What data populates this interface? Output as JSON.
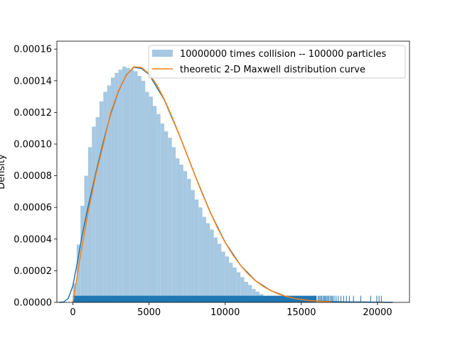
{
  "chart_data": {
    "type": "bar",
    "title": "",
    "xlabel": "",
    "ylabel": "Density",
    "xlim": [
      -1050,
      22100
    ],
    "ylim": [
      0,
      0.000165
    ],
    "xticks": [
      0,
      5000,
      10000,
      15000,
      20000
    ],
    "xtick_labels": [
      "0",
      "5000",
      "10000",
      "15000",
      "20000"
    ],
    "yticks": [
      0,
      2e-05,
      4e-05,
      6e-05,
      8e-05,
      0.0001,
      0.00012,
      0.00014,
      0.00016
    ],
    "ytick_labels": [
      "0.00000",
      "0.00002",
      "0.00004",
      "0.00006",
      "0.00008",
      "0.00010",
      "0.00012",
      "0.00014",
      "0.00016"
    ],
    "grid": false,
    "legend_position": "top-right",
    "colors": {
      "histogram": "#a6c8e2",
      "theory_curve": "#ff7f0e",
      "kde_curve": "#1f77b4",
      "rug": "#1f77b4"
    },
    "series": [
      {
        "name": "10000000 times collision -- 100000 particles",
        "kind": "histogram",
        "bin_edges": [
          0,
          250,
          500,
          750,
          1000,
          1250,
          1500,
          1750,
          2000,
          2250,
          2500,
          2750,
          3000,
          3250,
          3500,
          3750,
          4000,
          4250,
          4500,
          4750,
          5000,
          5250,
          5500,
          5750,
          6000,
          6250,
          6500,
          6750,
          7000,
          7250,
          7500,
          7750,
          8000,
          8250,
          8500,
          8750,
          9000,
          9250,
          9500,
          9750,
          10000,
          10250,
          10500,
          10750,
          11000,
          11250,
          11500,
          11750,
          12000,
          12250,
          12500,
          12750,
          13000,
          13250,
          13500,
          13750,
          14000,
          14250,
          14500,
          14750,
          15000
        ],
        "values": [
          1.2e-05,
          3.65e-05,
          6.1e-05,
          8e-05,
          9.8e-05,
          0.000111,
          0.000117,
          0.000127,
          0.000133,
          0.000137,
          0.000142,
          0.000145,
          0.000147,
          0.000149,
          0.000148,
          0.000147,
          0.000146,
          0.000143,
          0.00014,
          0.000133,
          0.00013,
          0.000124,
          0.000119,
          0.000113,
          0.000108,
          0.000104,
          9.8e-05,
          9.1e-05,
          8.7e-05,
          8.3e-05,
          7.8e-05,
          7.1e-05,
          6.5e-05,
          6e-05,
          5.4e-05,
          5e-05,
          4.6e-05,
          4.1e-05,
          3.7e-05,
          3.2e-05,
          2.9e-05,
          2.5e-05,
          2.2e-05,
          1.9e-05,
          1.6e-05,
          1.3e-05,
          1.1e-05,
          8.5e-06,
          6.8e-06,
          5.2e-06,
          4e-06,
          3e-06,
          2.2e-06,
          1.6e-06,
          1.2e-06,
          8e-07,
          6e-07,
          4e-07,
          3e-07,
          2e-07
        ]
      },
      {
        "name": "theoretic 2-D Maxwell distribution curve",
        "kind": "line",
        "x": [
          0,
          500,
          1000,
          1500,
          2000,
          2500,
          3000,
          3500,
          4000,
          4500,
          5000,
          5500,
          6000,
          6500,
          7000,
          7500,
          8000,
          8500,
          9000,
          9500,
          10000,
          10500,
          11000,
          11500,
          12000,
          12500,
          13000,
          13500,
          14000,
          14500,
          15000,
          15500,
          16000,
          16500,
          17000
        ],
        "y": [
          0,
          2.97e-05,
          5.66e-05,
          8.02e-05,
          9.98e-05,
          0.0001204,
          0.0001339,
          0.0001433,
          0.0001488,
          0.0001484,
          0.0001444,
          0.0001375,
          0.0001283,
          0.0001174,
          0.0001055,
          9.31e-05,
          8.07e-05,
          6.86e-05,
          5.73e-05,
          4.7e-05,
          3.79e-05,
          3.01e-05,
          2.35e-05,
          1.8e-05,
          1.36e-05,
          1.01e-05,
          7.4e-06,
          5.3e-06,
          3.8e-06,
          2.6e-06,
          1.8e-06,
          1.2e-06,
          8e-07,
          5e-07,
          3e-07
        ]
      },
      {
        "kind": "kde_line",
        "x": [
          -900,
          -600,
          -300,
          0,
          300,
          600,
          1000,
          1500,
          2000,
          2500,
          3000,
          3500,
          4000,
          4500,
          5000,
          6000,
          7000,
          8000,
          9000,
          10000,
          11000,
          12000,
          13000,
          14000,
          15000,
          16000,
          17000,
          18000,
          19000,
          20000,
          21000
        ],
        "y": [
          0,
          3e-07,
          2.5e-06,
          1.05e-05,
          2.55e-05,
          4.2e-05,
          6.05e-05,
          8.15e-05,
          0.0001015,
          0.0001195,
          0.0001335,
          0.0001435,
          0.0001485,
          0.0001478,
          0.000144,
          0.000128,
          0.0001055,
          8.07e-05,
          5.73e-05,
          3.79e-05,
          2.35e-05,
          1.36e-05,
          7.4e-06,
          3.8e-06,
          1.8e-06,
          9e-07,
          5e-07,
          3e-07,
          2e-07,
          1e-07,
          0
        ]
      },
      {
        "kind": "rug",
        "solid_range": [
          0,
          16000
        ],
        "outliers": [
          16100,
          16180,
          16260,
          16330,
          16420,
          16500,
          16560,
          16640,
          16720,
          16800,
          16890,
          16980,
          17050,
          17150,
          17280,
          17420,
          17600,
          17780,
          17960,
          18150,
          18420,
          18900,
          19550,
          19950,
          20100,
          20250
        ]
      }
    ]
  }
}
